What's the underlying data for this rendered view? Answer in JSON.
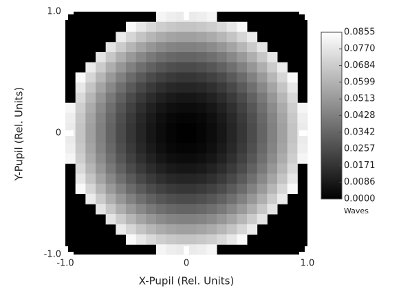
{
  "chart_data": {
    "type": "heatmap",
    "xlabel": "X-Pupil (Rel. Units)",
    "ylabel": "Y-Pupil (Rel. Units)",
    "xlim": [
      -1,
      1
    ],
    "ylim": [
      -1,
      1
    ],
    "xticks": [
      {
        "value": -1,
        "label": "-1.0"
      },
      0,
      {
        "value": 1,
        "label": "1.0"
      }
    ],
    "yticks": [
      {
        "value": -1,
        "label": "-1.0"
      },
      0,
      {
        "value": 1,
        "label": "1.0"
      }
    ],
    "background": "#000000",
    "tick_color": "#ffffff",
    "colorscale": [
      "#000000",
      "#ffffff"
    ],
    "zlim": [
      0,
      0.0855
    ],
    "colorbar_label": "Waves",
    "zticks": [
      {
        "value": 0,
        "label": "0.0000"
      },
      0.0086,
      0.0171,
      0.0257,
      0.0342,
      0.0428,
      0.0513,
      0.0599,
      0.0684,
      {
        "value": 0.077,
        "label": "0.0770"
      },
      0.0855
    ],
    "z": [
      [
        null,
        null,
        null,
        null,
        null,
        null,
        null,
        null,
        null,
        0.0822,
        0.0799,
        0.0787,
        0.0787,
        0.0799,
        0.0822,
        null,
        null,
        null,
        null,
        null,
        null,
        null,
        null,
        null
      ],
      [
        null,
        null,
        null,
        null,
        null,
        null,
        0.0835,
        0.0776,
        0.0728,
        0.0692,
        0.0669,
        0.0657,
        0.0657,
        0.0669,
        0.0692,
        0.0728,
        0.0776,
        0.0835,
        null,
        null,
        null,
        null,
        null,
        null
      ],
      [
        null,
        null,
        null,
        null,
        null,
        0.0787,
        0.0716,
        0.0657,
        0.0609,
        0.0573,
        0.055,
        0.0538,
        0.0538,
        0.055,
        0.0573,
        0.0609,
        0.0657,
        0.0716,
        0.0787,
        null,
        null,
        null,
        null,
        null
      ],
      [
        null,
        null,
        null,
        null,
        0.0763,
        0.068,
        0.0609,
        0.055,
        0.0502,
        0.0466,
        0.0443,
        0.0431,
        0.0431,
        0.0443,
        0.0466,
        0.0502,
        0.055,
        0.0609,
        0.068,
        0.0763,
        null,
        null,
        null,
        null
      ],
      [
        null,
        null,
        null,
        0.0763,
        0.0668,
        0.0585,
        0.0514,
        0.0455,
        0.0407,
        0.0371,
        0.0348,
        0.0336,
        0.0336,
        0.0348,
        0.0371,
        0.0407,
        0.0455,
        0.0514,
        0.0585,
        0.0668,
        0.0763,
        null,
        null,
        null
      ],
      [
        null,
        null,
        0.0787,
        0.068,
        0.0585,
        0.0502,
        0.0431,
        0.0372,
        0.0324,
        0.0288,
        0.0265,
        0.0253,
        0.0253,
        0.0265,
        0.0288,
        0.0324,
        0.0372,
        0.0431,
        0.0502,
        0.0585,
        0.068,
        0.0787,
        null,
        null
      ],
      [
        null,
        0.0835,
        0.0716,
        0.0609,
        0.0514,
        0.0431,
        0.036,
        0.0301,
        0.0253,
        0.0217,
        0.0194,
        0.0182,
        0.0182,
        0.0194,
        0.0217,
        0.0253,
        0.0301,
        0.036,
        0.0431,
        0.0514,
        0.0609,
        0.0716,
        0.0835,
        null
      ],
      [
        null,
        0.0776,
        0.0657,
        0.055,
        0.0455,
        0.0372,
        0.0301,
        0.0242,
        0.0194,
        0.0158,
        0.0135,
        0.0123,
        0.0123,
        0.0135,
        0.0158,
        0.0194,
        0.0242,
        0.0301,
        0.0372,
        0.0455,
        0.055,
        0.0657,
        0.0776,
        null
      ],
      [
        null,
        0.0728,
        0.0609,
        0.0502,
        0.0407,
        0.0324,
        0.0253,
        0.0194,
        0.0146,
        0.011,
        0.0087,
        0.0075,
        0.0075,
        0.0087,
        0.011,
        0.0146,
        0.0194,
        0.0253,
        0.0324,
        0.0407,
        0.0502,
        0.0609,
        0.0728,
        null
      ],
      [
        0.0822,
        0.0692,
        0.0573,
        0.0466,
        0.0371,
        0.0288,
        0.0217,
        0.0158,
        0.011,
        0.0074,
        0.0051,
        0.0039,
        0.0039,
        0.0051,
        0.0074,
        0.011,
        0.0158,
        0.0217,
        0.0288,
        0.0371,
        0.0466,
        0.0573,
        0.0692,
        0.0822
      ],
      [
        0.0799,
        0.0669,
        0.055,
        0.0443,
        0.0348,
        0.0265,
        0.0194,
        0.0135,
        0.0087,
        0.0051,
        0.0028,
        0.0016,
        0.0016,
        0.0028,
        0.0051,
        0.0087,
        0.0135,
        0.0194,
        0.0265,
        0.0348,
        0.0443,
        0.055,
        0.0669,
        0.0799
      ],
      [
        0.0787,
        0.0657,
        0.0538,
        0.0431,
        0.0336,
        0.0253,
        0.0182,
        0.0123,
        0.0075,
        0.0039,
        0.0016,
        0.0004,
        0.0004,
        0.0016,
        0.0039,
        0.0075,
        0.0123,
        0.0182,
        0.0253,
        0.0336,
        0.0431,
        0.0538,
        0.0657,
        0.0787
      ],
      [
        0.0787,
        0.0657,
        0.0538,
        0.0431,
        0.0336,
        0.0253,
        0.0182,
        0.0123,
        0.0075,
        0.0039,
        0.0016,
        0.0004,
        0.0004,
        0.0016,
        0.0039,
        0.0075,
        0.0123,
        0.0182,
        0.0253,
        0.0336,
        0.0431,
        0.0538,
        0.0657,
        0.0787
      ],
      [
        0.0799,
        0.0669,
        0.055,
        0.0443,
        0.0348,
        0.0265,
        0.0194,
        0.0135,
        0.0087,
        0.0051,
        0.0028,
        0.0016,
        0.0016,
        0.0028,
        0.0051,
        0.0087,
        0.0135,
        0.0194,
        0.0265,
        0.0348,
        0.0443,
        0.055,
        0.0669,
        0.0799
      ],
      [
        0.0822,
        0.0692,
        0.0573,
        0.0466,
        0.0371,
        0.0288,
        0.0217,
        0.0158,
        0.011,
        0.0074,
        0.0051,
        0.0039,
        0.0039,
        0.0051,
        0.0074,
        0.011,
        0.0158,
        0.0217,
        0.0288,
        0.0371,
        0.0466,
        0.0573,
        0.0692,
        0.0822
      ],
      [
        null,
        0.0728,
        0.0609,
        0.0502,
        0.0407,
        0.0324,
        0.0253,
        0.0194,
        0.0146,
        0.011,
        0.0087,
        0.0075,
        0.0075,
        0.0087,
        0.011,
        0.0146,
        0.0194,
        0.0253,
        0.0324,
        0.0407,
        0.0502,
        0.0609,
        0.0728,
        null
      ],
      [
        null,
        0.0776,
        0.0657,
        0.055,
        0.0455,
        0.0372,
        0.0301,
        0.0242,
        0.0194,
        0.0158,
        0.0135,
        0.0123,
        0.0123,
        0.0135,
        0.0158,
        0.0194,
        0.0242,
        0.0301,
        0.0372,
        0.0455,
        0.055,
        0.0657,
        0.0776,
        null
      ],
      [
        null,
        0.0835,
        0.0716,
        0.0609,
        0.0514,
        0.0431,
        0.036,
        0.0301,
        0.0253,
        0.0217,
        0.0194,
        0.0182,
        0.0182,
        0.0194,
        0.0217,
        0.0253,
        0.0301,
        0.036,
        0.0431,
        0.0514,
        0.0609,
        0.0716,
        0.0835,
        null
      ],
      [
        null,
        null,
        0.0787,
        0.068,
        0.0585,
        0.0502,
        0.0431,
        0.0372,
        0.0324,
        0.0288,
        0.0265,
        0.0253,
        0.0253,
        0.0265,
        0.0288,
        0.0324,
        0.0372,
        0.0431,
        0.0502,
        0.0585,
        0.068,
        0.0787,
        null,
        null
      ],
      [
        null,
        null,
        null,
        0.0763,
        0.0668,
        0.0585,
        0.0514,
        0.0455,
        0.0407,
        0.0371,
        0.0348,
        0.0336,
        0.0336,
        0.0348,
        0.0371,
        0.0407,
        0.0455,
        0.0514,
        0.0585,
        0.0668,
        0.0763,
        null,
        null,
        null
      ],
      [
        null,
        null,
        null,
        null,
        0.0763,
        0.068,
        0.0609,
        0.055,
        0.0502,
        0.0466,
        0.0443,
        0.0431,
        0.0431,
        0.0443,
        0.0466,
        0.0502,
        0.055,
        0.0609,
        0.068,
        0.0763,
        null,
        null,
        null,
        null
      ],
      [
        null,
        null,
        null,
        null,
        null,
        0.0787,
        0.0716,
        0.0657,
        0.0609,
        0.0573,
        0.055,
        0.0538,
        0.0538,
        0.055,
        0.0573,
        0.0609,
        0.0657,
        0.0716,
        0.0787,
        null,
        null,
        null,
        null,
        null
      ],
      [
        null,
        null,
        null,
        null,
        null,
        null,
        0.0835,
        0.0776,
        0.0728,
        0.0692,
        0.0669,
        0.0657,
        0.0657,
        0.0669,
        0.0692,
        0.0728,
        0.0776,
        0.0835,
        null,
        null,
        null,
        null,
        null,
        null
      ],
      [
        null,
        null,
        null,
        null,
        null,
        null,
        null,
        null,
        null,
        0.0822,
        0.0799,
        0.0787,
        0.0787,
        0.0799,
        0.0822,
        null,
        null,
        null,
        null,
        null,
        null,
        null,
        null,
        null
      ]
    ]
  }
}
